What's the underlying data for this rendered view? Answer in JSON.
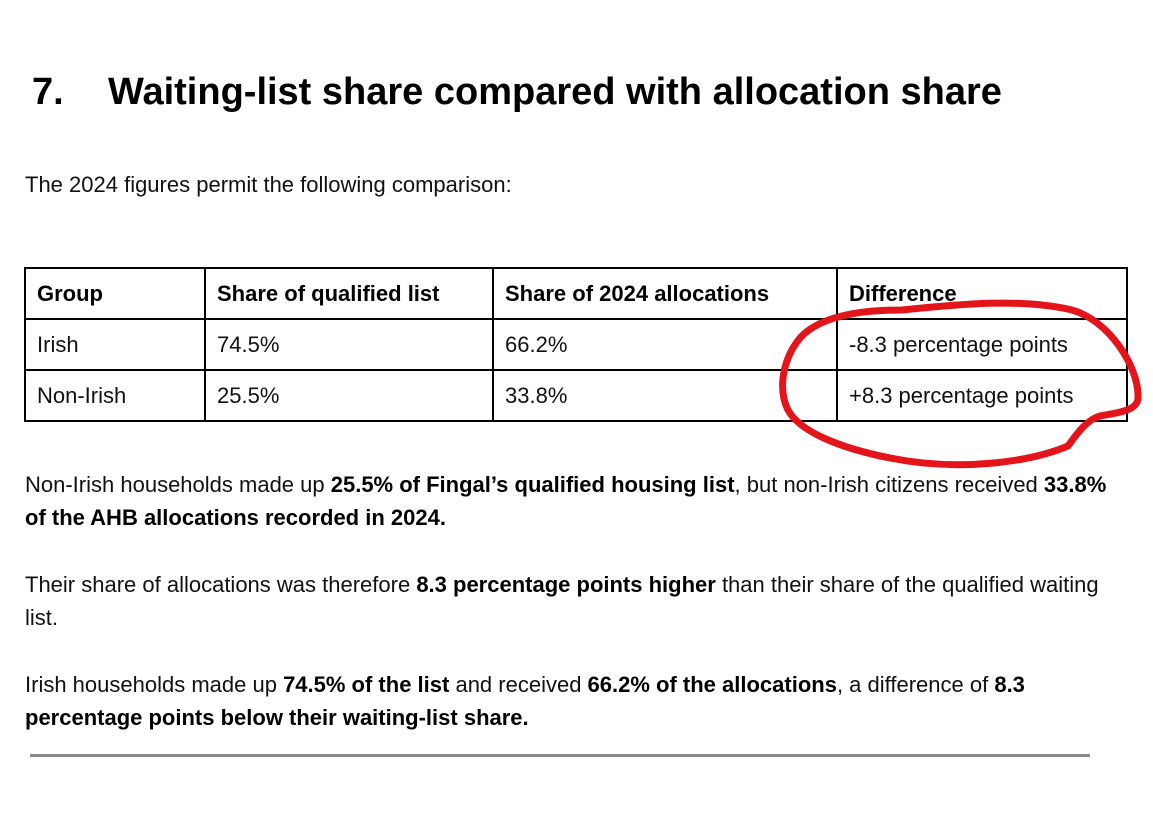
{
  "section": {
    "number": "7.",
    "title": "Waiting-list share compared with allocation share"
  },
  "intro": "The 2024 figures permit the following comparison:",
  "table": {
    "headers": [
      "Group",
      "Share of qualified list",
      "Share of 2024 allocations",
      "Difference"
    ],
    "rows": [
      [
        "Irish",
        "74.5%",
        "66.2%",
        "-8.3 percentage points"
      ],
      [
        "Non-Irish",
        "25.5%",
        "33.8%",
        "+8.3 percentage points"
      ]
    ]
  },
  "paragraphs": [
    {
      "a": "Non-Irish households made up ",
      "b": "25.5% of Fingal’s qualified housing list",
      "c": ", but non-Irish citizens received ",
      "d": "33.8% of the AHB allocations recorded in 2024."
    },
    {
      "a": "Their share of allocations was therefore ",
      "b": "8.3 percentage points higher",
      "c": " than their share of the qualified waiting list."
    },
    {
      "a": "Irish households made up ",
      "b": "74.5% of the list",
      "c": " and received ",
      "d": "66.2% of the allocations",
      "e": ", a difference of ",
      "f": "8.3 percentage points below their waiting-list share."
    }
  ],
  "colors": {
    "annotation": "#e3151a",
    "divider": "#8a8a8a"
  },
  "annotation": {
    "type": "hand-drawn-circle",
    "target": "difference-column"
  }
}
